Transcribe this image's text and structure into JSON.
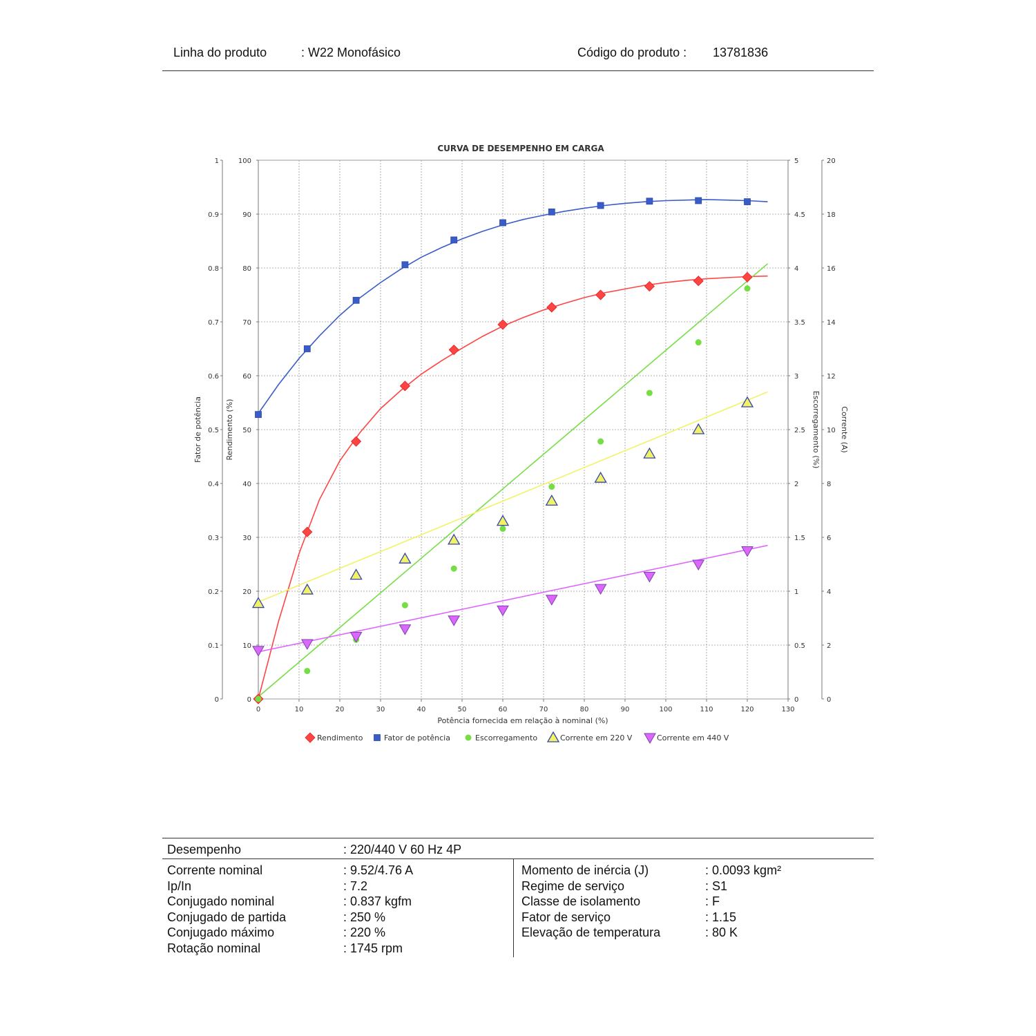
{
  "header": {
    "linha_label": "Linha do produto",
    "linha_value": ": W22 Monofásico",
    "codigo_label": "Código do produto :",
    "codigo_value": "13781836"
  },
  "chart_data": {
    "type": "line",
    "title": "CURVA DE DESEMPENHO EM CARGA",
    "xlabel": "Potência fornecida em relação à nominal (%)",
    "xlim": [
      0,
      130
    ],
    "x_ticks": [
      "0",
      "10",
      "20",
      "30",
      "40",
      "50",
      "60",
      "70",
      "80",
      "90",
      "100",
      "110",
      "120",
      "130"
    ],
    "axes": [
      {
        "key": "fp",
        "label": "Fator de potência",
        "range": [
          0,
          1
        ],
        "ticks": [
          "0",
          "0.1",
          "0.2",
          "0.3",
          "0.4",
          "0.5",
          "0.6",
          "0.7",
          "0.8",
          "0.9",
          "1"
        ]
      },
      {
        "key": "rend",
        "label": "Rendimento (%)",
        "range": [
          0,
          100
        ],
        "ticks": [
          "0",
          "10",
          "20",
          "30",
          "40",
          "50",
          "60",
          "70",
          "80",
          "90",
          "100"
        ]
      },
      {
        "key": "esc",
        "label": "Escorregamento (%)",
        "range": [
          0,
          5
        ],
        "ticks": [
          "0",
          "0.5",
          "1",
          "1.5",
          "2",
          "2.5",
          "3",
          "3.5",
          "4",
          "4.5",
          "5"
        ]
      },
      {
        "key": "cor",
        "label": "Corrente (A)",
        "range": [
          0,
          20
        ],
        "ticks": [
          "0",
          "2",
          "4",
          "6",
          "8",
          "10",
          "12",
          "14",
          "16",
          "18",
          "20"
        ]
      }
    ],
    "series": [
      {
        "name": "Rendimento",
        "axis": "rend",
        "marker": "diamond",
        "color": "#ff4444",
        "x": [
          0,
          12,
          24,
          36,
          48,
          60,
          72,
          84,
          96,
          108,
          120
        ],
        "y": [
          0,
          31,
          47.8,
          58.1,
          64.8,
          69.5,
          72.7,
          75.0,
          76.6,
          77.6,
          78.3
        ],
        "curve_x": [
          0,
          5,
          10,
          15,
          20,
          25,
          30,
          35,
          40,
          45,
          50,
          55,
          60,
          65,
          70,
          75,
          80,
          85,
          90,
          95,
          100,
          105,
          110,
          115,
          120,
          125
        ],
        "curve_y": [
          0,
          14.5,
          27,
          37,
          44.2,
          49.5,
          53.9,
          57.3,
          60.3,
          62.8,
          65.1,
          67.3,
          69.2,
          70.8,
          72.2,
          73.4,
          74.5,
          75.4,
          76.1,
          76.8,
          77.3,
          77.7,
          78.0,
          78.2,
          78.4,
          78.5
        ]
      },
      {
        "name": "Fator de potência",
        "axis": "fp",
        "marker": "square",
        "color": "#3a5cc7",
        "x": [
          0,
          12,
          24,
          36,
          48,
          60,
          72,
          84,
          96,
          108,
          120
        ],
        "y": [
          0.528,
          0.65,
          0.74,
          0.806,
          0.852,
          0.884,
          0.904,
          0.916,
          0.924,
          0.925,
          0.923
        ],
        "curve_x": [
          0,
          5,
          10,
          15,
          20,
          25,
          30,
          35,
          40,
          45,
          50,
          55,
          60,
          65,
          70,
          75,
          80,
          85,
          90,
          95,
          100,
          105,
          110,
          115,
          120,
          125
        ],
        "curve_y": [
          0.53,
          0.584,
          0.632,
          0.674,
          0.712,
          0.745,
          0.773,
          0.798,
          0.82,
          0.838,
          0.854,
          0.868,
          0.88,
          0.89,
          0.898,
          0.905,
          0.911,
          0.916,
          0.92,
          0.923,
          0.925,
          0.926,
          0.927,
          0.926,
          0.925,
          0.923
        ]
      },
      {
        "name": "Escorregamento",
        "axis": "esc",
        "marker": "circle",
        "color": "#77dd44",
        "x": [
          0,
          12,
          24,
          36,
          48,
          60,
          72,
          84,
          96,
          108,
          120
        ],
        "y": [
          0,
          0.26,
          0.55,
          0.87,
          1.21,
          1.58,
          1.97,
          2.39,
          2.84,
          3.31,
          3.81
        ],
        "curve_x": [
          0,
          125
        ],
        "curve_y": [
          0.02,
          4.04
        ]
      },
      {
        "name": "Corrente em 220 V",
        "axis": "cor",
        "marker": "triangle-up",
        "color": "#f2f266",
        "x": [
          0,
          12,
          24,
          36,
          48,
          60,
          72,
          84,
          96,
          108,
          120
        ],
        "y": [
          3.55,
          4.05,
          4.6,
          5.2,
          5.9,
          6.6,
          7.35,
          8.2,
          9.1,
          10.0,
          11.0
        ],
        "curve_x": [
          0,
          125
        ],
        "curve_y": [
          3.6,
          11.4
        ]
      },
      {
        "name": "Corrente em 440 V",
        "axis": "cor",
        "marker": "triangle-down",
        "color": "#dd66ff",
        "x": [
          0,
          12,
          24,
          36,
          48,
          60,
          72,
          84,
          96,
          108,
          120
        ],
        "y": [
          1.8,
          2.05,
          2.32,
          2.6,
          2.93,
          3.3,
          3.7,
          4.1,
          4.55,
          5.0,
          5.5
        ],
        "curve_x": [
          0,
          125
        ],
        "curve_y": [
          1.75,
          5.7
        ]
      }
    ],
    "grid": true,
    "legend_position": "bottom"
  },
  "specs": {
    "desempenho_label": "Desempenho",
    "desempenho_value": ": 220/440 V 60 Hz 4P",
    "left": [
      {
        "label": "Corrente nominal",
        "value": ": 9.52/4.76 A"
      },
      {
        "label": "Ip/In",
        "value": ": 7.2"
      },
      {
        "label": "Conjugado nominal",
        "value": ": 0.837 kgfm"
      },
      {
        "label": "Conjugado de partida",
        "value": ": 250 %"
      },
      {
        "label": "Conjugado máximo",
        "value": ": 220 %"
      },
      {
        "label": "Rotação nominal",
        "value": ": 1745 rpm"
      }
    ],
    "right": [
      {
        "label": "Momento de inércia (J)",
        "value": ": 0.0093 kgm²"
      },
      {
        "label": "Regime de serviço",
        "value": ": S1"
      },
      {
        "label": "Classe de isolamento",
        "value": ": F"
      },
      {
        "label": "Fator de serviço",
        "value": ": 1.15"
      },
      {
        "label": "Elevação de temperatura",
        "value": ": 80 K"
      }
    ]
  }
}
